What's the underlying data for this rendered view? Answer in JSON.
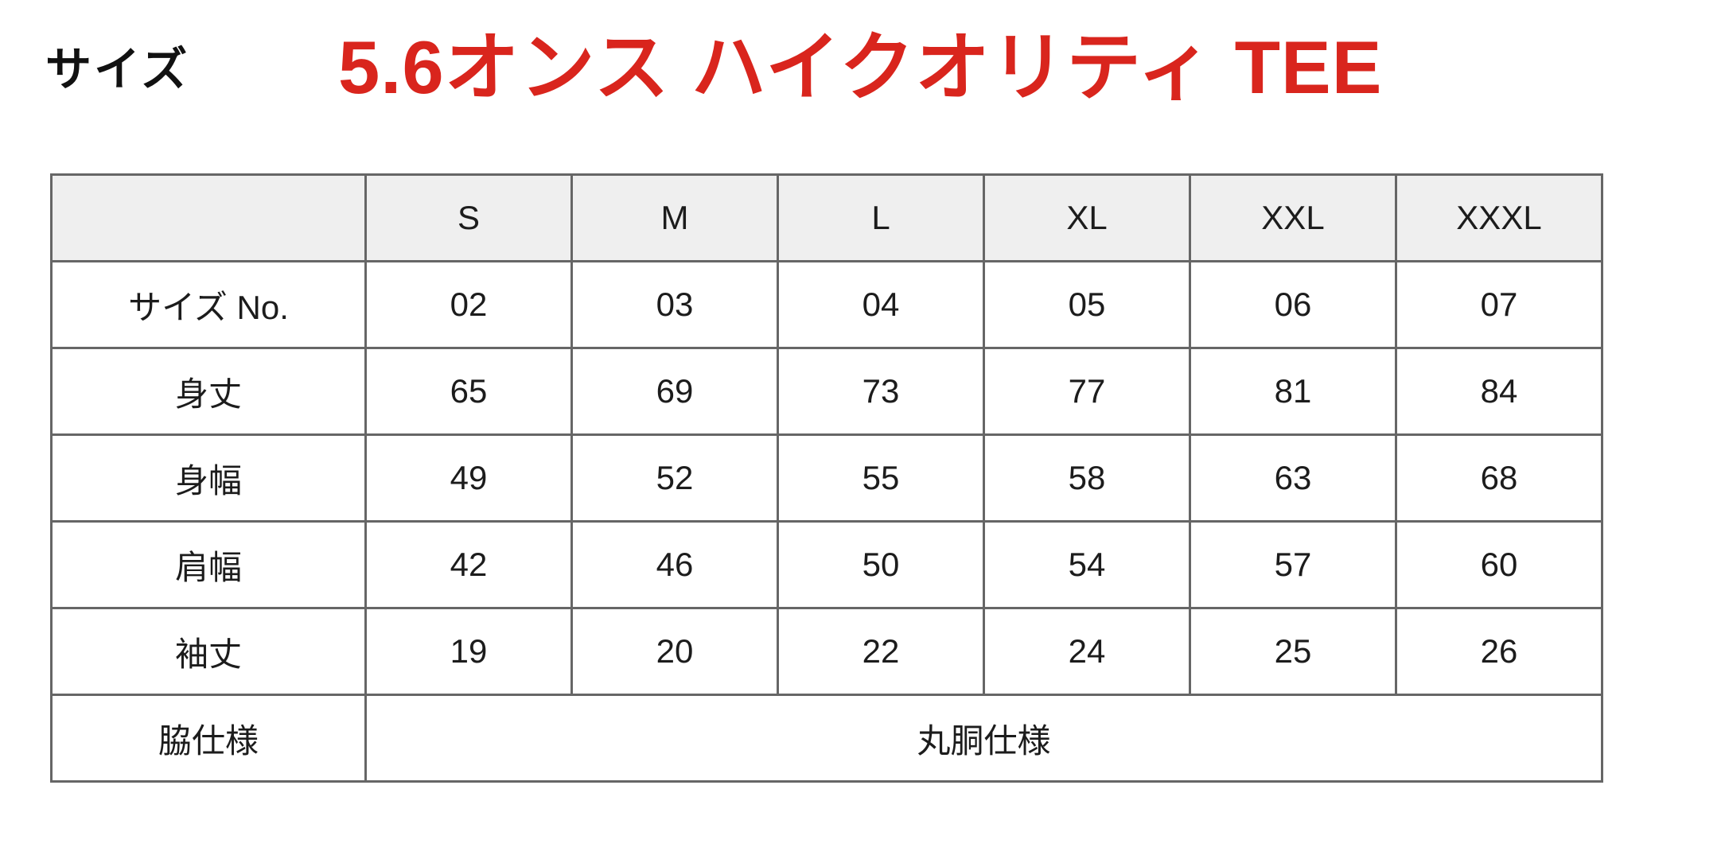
{
  "header": {
    "section_label": "サイズ",
    "product_title": "5.6オンス ハイクオリティ TEE"
  },
  "size_table": {
    "columns": [
      "",
      "S",
      "M",
      "L",
      "XL",
      "XXL",
      "XXXL"
    ],
    "rows": [
      {
        "label": "サイズ No.",
        "values": [
          "02",
          "03",
          "04",
          "05",
          "06",
          "07"
        ]
      },
      {
        "label": "身丈",
        "values": [
          "65",
          "69",
          "73",
          "77",
          "81",
          "84"
        ]
      },
      {
        "label": "身幅",
        "values": [
          "49",
          "52",
          "55",
          "58",
          "63",
          "68"
        ]
      },
      {
        "label": "肩幅",
        "values": [
          "42",
          "46",
          "50",
          "54",
          "57",
          "60"
        ]
      },
      {
        "label": "袖丈",
        "values": [
          "19",
          "20",
          "22",
          "24",
          "25",
          "26"
        ]
      }
    ],
    "footer_row": {
      "label": "脇仕様",
      "merged_value": "丸胴仕様"
    }
  },
  "colors": {
    "accent_red": "#d9251d",
    "header_bg": "#efefef",
    "border_color": "#666666",
    "text_color": "#1c1c1c"
  }
}
